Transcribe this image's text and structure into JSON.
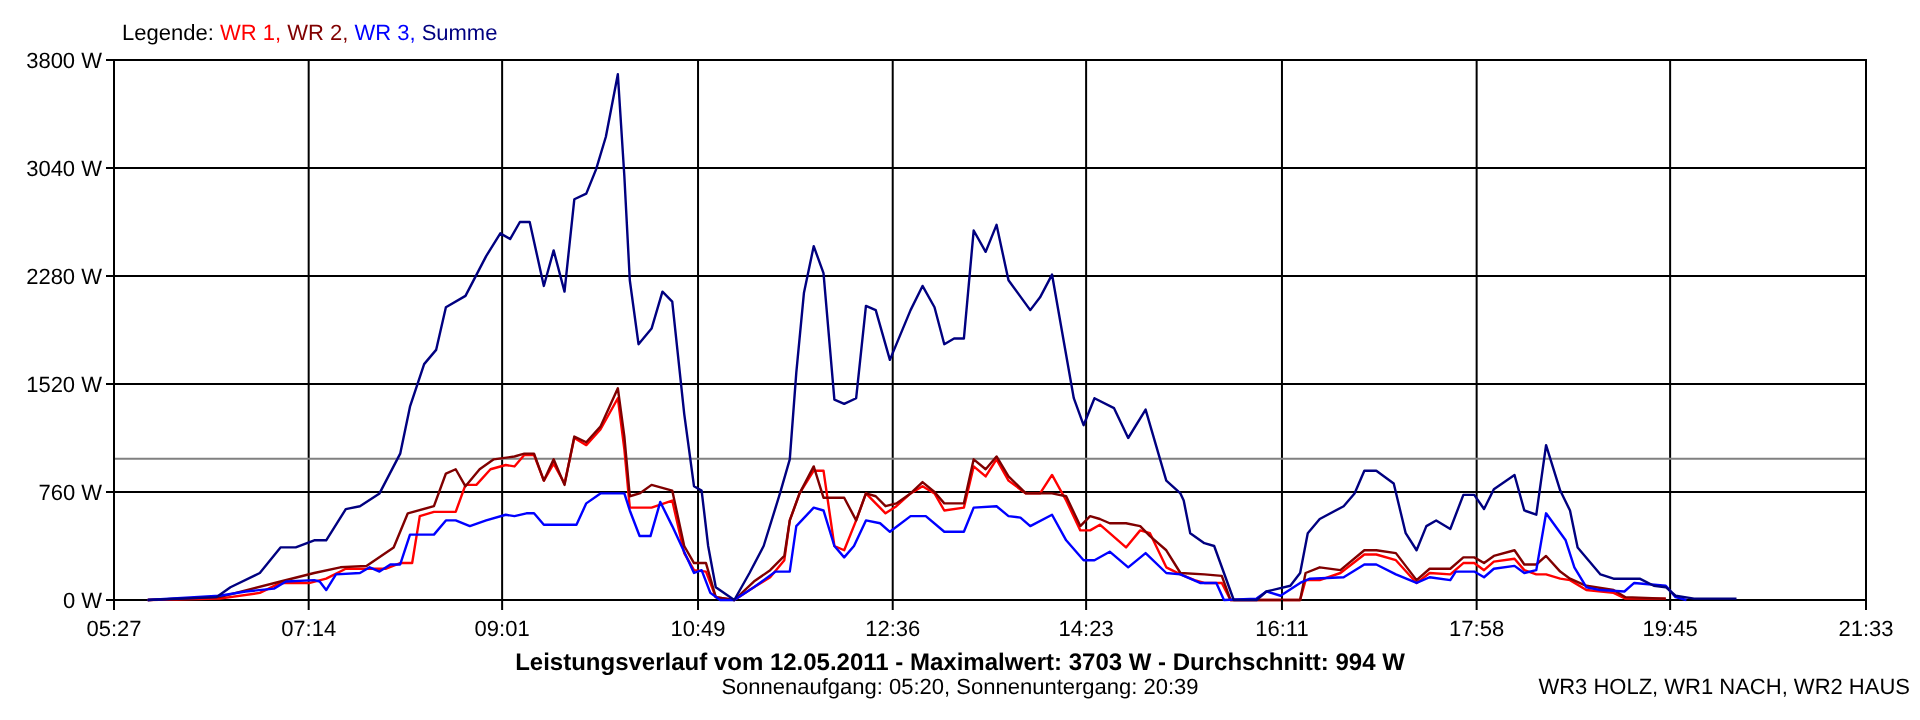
{
  "chart_data": {
    "type": "line",
    "title": "Leistungsverlauf vom 12.05.2011 - Maximalwert: 3703 W - Durchschnitt: 994 W",
    "subtitle": "Sonnenaufgang: 05:20, Sonnenuntergang: 20:39",
    "legend_title": "Legende:",
    "legend": "top left",
    "grid": true,
    "annotations": [
      "WR3 HOLZ, WR1 NACH, WR2 HAUS"
    ],
    "xlim": [
      5.45,
      21.55
    ],
    "xticks": [
      {
        "value": 5.45,
        "label": "05:27"
      },
      {
        "value": 7.239,
        "label": "07:14"
      },
      {
        "value": 9.0167,
        "label": "09:01"
      },
      {
        "value": 10.817,
        "label": "10:49"
      },
      {
        "value": 12.606,
        "label": "12:36"
      },
      {
        "value": 14.3833,
        "label": "14:23"
      },
      {
        "value": 16.183,
        "label": "16:11"
      },
      {
        "value": 17.972,
        "label": "17:58"
      },
      {
        "value": 19.75,
        "label": "19:45"
      },
      {
        "value": 21.55,
        "label": "21:33"
      }
    ],
    "ylim": [
      0,
      3800
    ],
    "yticks": [
      {
        "value": 0,
        "label": "0 W"
      },
      {
        "value": 760,
        "label": "760 W"
      },
      {
        "value": 1520,
        "label": "1520 W"
      },
      {
        "value": 2280,
        "label": "2280 W"
      },
      {
        "value": 3040,
        "label": "3040 W"
      },
      {
        "value": 3800,
        "label": "3800 W"
      }
    ],
    "ref_lines": [
      {
        "axis": "y",
        "value": 994,
        "color": "#808080"
      }
    ],
    "series": [
      {
        "name": "WR 1,",
        "color": "#ff0000",
        "x": [
          5.76,
          6.42,
          6.79,
          6.98,
          7.25,
          7.4,
          7.58,
          7.95,
          8.08,
          8.19,
          8.26,
          8.39,
          8.59,
          8.68,
          8.78,
          8.91,
          9.05,
          9.13,
          9.22,
          9.31,
          9.4,
          9.49,
          9.59,
          9.68,
          9.79,
          9.92,
          10.08,
          10.14,
          10.19,
          10.28,
          10.39,
          10.58,
          10.69,
          10.78,
          10.89,
          10.98,
          11.15,
          11.33,
          11.48,
          11.61,
          11.66,
          11.75,
          11.88,
          11.97,
          12.07,
          12.16,
          12.27,
          12.36,
          12.45,
          12.54,
          12.64,
          12.77,
          12.88,
          12.99,
          13.08,
          13.26,
          13.35,
          13.46,
          13.56,
          13.67,
          13.83,
          13.96,
          14.07,
          14.2,
          14.33,
          14.42,
          14.51,
          14.6,
          14.75,
          14.88,
          14.97,
          15.12,
          15.25,
          15.38,
          15.47,
          15.63,
          15.71,
          16.35,
          16.4,
          16.53,
          16.72,
          16.94,
          17.05,
          17.23,
          17.42,
          17.54,
          17.73,
          17.85,
          17.95,
          18.04,
          18.13,
          18.32,
          18.41,
          18.52,
          18.61,
          18.74,
          18.83,
          18.98,
          19.23,
          19.34,
          19.71
        ],
        "values": [
          0,
          10,
          50,
          120,
          120,
          150,
          220,
          220,
          260,
          260,
          590,
          620,
          620,
          810,
          810,
          920,
          950,
          940,
          1020,
          1020,
          840,
          960,
          820,
          1140,
          1090,
          1200,
          1420,
          1060,
          650,
          650,
          650,
          700,
          330,
          210,
          200,
          20,
          0,
          90,
          160,
          280,
          560,
          750,
          910,
          910,
          380,
          350,
          560,
          750,
          680,
          610,
          660,
          750,
          800,
          750,
          630,
          650,
          940,
          870,
          990,
          840,
          750,
          750,
          880,
          700,
          490,
          490,
          530,
          470,
          370,
          490,
          470,
          230,
          180,
          140,
          120,
          120,
          0,
          0,
          140,
          140,
          190,
          320,
          320,
          280,
          120,
          190,
          180,
          260,
          260,
          210,
          270,
          290,
          210,
          180,
          180,
          150,
          140,
          70,
          50,
          10,
          10
        ]
      },
      {
        "name": "WR 2,",
        "color": "#800000",
        "x": [
          5.76,
          6.42,
          6.98,
          7.29,
          7.53,
          7.77,
          8.02,
          8.15,
          8.39,
          8.5,
          8.59,
          8.68,
          8.81,
          8.94,
          9.13,
          9.22,
          9.31,
          9.4,
          9.49,
          9.59,
          9.68,
          9.79,
          9.92,
          10.08,
          10.14,
          10.19,
          10.28,
          10.39,
          10.58,
          10.69,
          10.78,
          10.89,
          10.98,
          11.15,
          11.33,
          11.48,
          11.61,
          11.66,
          11.75,
          11.88,
          11.97,
          12.07,
          12.16,
          12.27,
          12.36,
          12.45,
          12.54,
          12.64,
          12.77,
          12.88,
          12.99,
          13.08,
          13.26,
          13.35,
          13.46,
          13.56,
          13.67,
          13.83,
          13.96,
          14.07,
          14.2,
          14.33,
          14.42,
          14.51,
          14.6,
          14.75,
          14.88,
          14.97,
          15.12,
          15.25,
          15.47,
          15.63,
          15.71,
          16.35,
          16.4,
          16.53,
          16.72,
          16.94,
          17.05,
          17.23,
          17.42,
          17.54,
          17.73,
          17.85,
          17.95,
          18.04,
          18.13,
          18.32,
          18.41,
          18.52,
          18.61,
          18.74,
          18.83,
          18.98,
          19.23,
          19.34,
          19.71
        ],
        "values": [
          0,
          20,
          130,
          190,
          230,
          240,
          370,
          610,
          660,
          890,
          920,
          800,
          920,
          990,
          1010,
          1030,
          1030,
          840,
          990,
          810,
          1150,
          1110,
          1220,
          1490,
          1150,
          730,
          750,
          810,
          770,
          380,
          260,
          260,
          20,
          0,
          130,
          210,
          310,
          560,
          750,
          940,
          720,
          720,
          720,
          560,
          750,
          730,
          660,
          680,
          750,
          830,
          760,
          680,
          680,
          990,
          920,
          1010,
          870,
          750,
          750,
          750,
          730,
          520,
          590,
          570,
          540,
          540,
          520,
          450,
          350,
          190,
          180,
          170,
          0,
          0,
          190,
          230,
          210,
          350,
          350,
          330,
          140,
          220,
          220,
          300,
          300,
          260,
          310,
          350,
          250,
          250,
          310,
          200,
          150,
          100,
          70,
          20,
          10
        ]
      },
      {
        "name": "WR 3,",
        "color": "#0000ff",
        "x": [
          5.76,
          6.42,
          6.66,
          6.92,
          7.03,
          7.29,
          7.34,
          7.4,
          7.49,
          7.71,
          7.8,
          7.89,
          7.99,
          8.08,
          8.17,
          8.39,
          8.5,
          8.59,
          8.72,
          8.87,
          9.05,
          9.13,
          9.24,
          9.31,
          9.4,
          9.7,
          9.79,
          9.92,
          10.14,
          10.19,
          10.28,
          10.38,
          10.47,
          10.58,
          10.78,
          10.85,
          10.93,
          11.02,
          11.15,
          11.33,
          11.53,
          11.66,
          11.72,
          11.88,
          11.97,
          12.07,
          12.16,
          12.25,
          12.36,
          12.49,
          12.58,
          12.77,
          12.91,
          13.08,
          13.26,
          13.35,
          13.56,
          13.67,
          13.78,
          13.87,
          14.07,
          14.2,
          14.36,
          14.46,
          14.6,
          14.77,
          14.93,
          15.12,
          15.25,
          15.43,
          15.58,
          15.65,
          15.95,
          16.04,
          16.17,
          16.35,
          16.44,
          16.75,
          16.94,
          17.05,
          17.23,
          17.42,
          17.54,
          17.73,
          17.78,
          17.95,
          18.04,
          18.13,
          18.32,
          18.41,
          18.52,
          18.61,
          18.79,
          18.87,
          18.98,
          19.11,
          19.33,
          19.42,
          19.71,
          19.8,
          19.9
        ],
        "values": [
          0,
          30,
          60,
          80,
          130,
          140,
          130,
          70,
          180,
          190,
          230,
          200,
          250,
          250,
          460,
          460,
          560,
          560,
          520,
          560,
          600,
          590,
          610,
          610,
          530,
          530,
          680,
          750,
          750,
          630,
          450,
          450,
          690,
          520,
          190,
          210,
          50,
          0,
          0,
          90,
          200,
          200,
          520,
          650,
          630,
          380,
          300,
          380,
          560,
          540,
          480,
          590,
          590,
          480,
          480,
          650,
          660,
          590,
          580,
          520,
          600,
          420,
          280,
          280,
          340,
          230,
          330,
          190,
          180,
          120,
          120,
          0,
          10,
          60,
          30,
          120,
          150,
          160,
          250,
          250,
          180,
          120,
          160,
          140,
          200,
          200,
          160,
          220,
          240,
          190,
          210,
          610,
          420,
          230,
          90,
          70,
          60,
          120,
          100,
          20,
          0
        ]
      },
      {
        "name": "Summe",
        "color": "#000080",
        "x": [
          5.76,
          6.39,
          6.52,
          6.79,
          6.98,
          7.12,
          7.29,
          7.4,
          7.58,
          7.71,
          7.89,
          8.08,
          8.17,
          8.3,
          8.41,
          8.5,
          8.68,
          8.87,
          9.0,
          9.09,
          9.18,
          9.27,
          9.4,
          9.49,
          9.59,
          9.68,
          9.79,
          9.88,
          9.97,
          10.08,
          10.14,
          10.19,
          10.27,
          10.39,
          10.49,
          10.58,
          10.69,
          10.78,
          10.85,
          10.91,
          10.98,
          11.15,
          11.29,
          11.42,
          11.57,
          11.66,
          11.72,
          11.79,
          11.88,
          11.97,
          12.07,
          12.16,
          12.27,
          12.36,
          12.45,
          12.58,
          12.77,
          12.88,
          12.99,
          13.08,
          13.17,
          13.26,
          13.35,
          13.46,
          13.56,
          13.67,
          13.87,
          13.96,
          14.07,
          14.18,
          14.27,
          14.36,
          14.46,
          14.64,
          14.77,
          14.93,
          15.12,
          15.25,
          15.28,
          15.34,
          15.47,
          15.56,
          15.74,
          15.95,
          16.04,
          16.26,
          16.35,
          16.42,
          16.53,
          16.75,
          16.85,
          16.94,
          17.05,
          17.21,
          17.32,
          17.42,
          17.51,
          17.6,
          17.73,
          17.85,
          17.95,
          18.04,
          18.13,
          18.32,
          18.41,
          18.52,
          18.61,
          18.74,
          18.83,
          18.9,
          19.11,
          19.23,
          19.47,
          19.6,
          19.71,
          19.8,
          19.97,
          20.36
        ],
        "values": [
          0,
          20,
          90,
          190,
          370,
          370,
          420,
          420,
          640,
          660,
          750,
          1030,
          1360,
          1660,
          1760,
          2060,
          2140,
          2420,
          2580,
          2540,
          2660,
          2660,
          2210,
          2460,
          2170,
          2820,
          2860,
          3030,
          3260,
          3700,
          2980,
          2250,
          1800,
          1910,
          2170,
          2100,
          1310,
          800,
          770,
          380,
          90,
          0,
          190,
          380,
          750,
          990,
          1600,
          2160,
          2490,
          2300,
          1410,
          1380,
          1420,
          2070,
          2040,
          1690,
          2040,
          2210,
          2060,
          1800,
          1840,
          1840,
          2600,
          2450,
          2640,
          2250,
          2040,
          2130,
          2290,
          1810,
          1420,
          1230,
          1420,
          1350,
          1140,
          1340,
          840,
          750,
          700,
          470,
          400,
          380,
          0,
          0,
          60,
          100,
          190,
          470,
          570,
          660,
          750,
          910,
          910,
          820,
          470,
          350,
          520,
          560,
          500,
          740,
          740,
          640,
          780,
          880,
          630,
          600,
          1090,
          770,
          630,
          370,
          180,
          150,
          150,
          100,
          90,
          30,
          10,
          10
        ]
      }
    ]
  }
}
